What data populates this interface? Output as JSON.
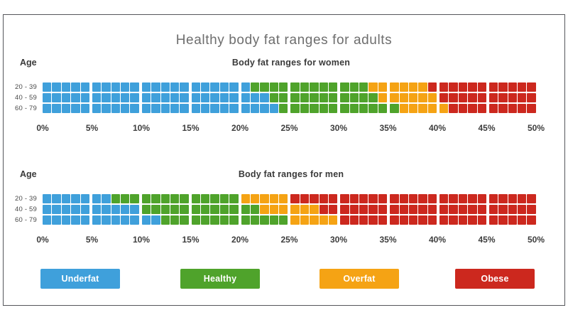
{
  "page": {
    "title": "Healthy body fat ranges for adults"
  },
  "legend": {
    "items": [
      {
        "label": "Underfat",
        "color": "#3FA0DB"
      },
      {
        "label": "Healthy",
        "color": "#4FA32B"
      },
      {
        "label": "Overfat",
        "color": "#F5A314"
      },
      {
        "label": "Obese",
        "color": "#CC281E"
      }
    ]
  },
  "chart_data": [
    {
      "type": "bar",
      "subtype": "horizontal-range-stacked",
      "title": "Body fat ranges for women",
      "corner_label": "Age",
      "categories": [
        "20 - 39",
        "40 - 59",
        "60 - 79"
      ],
      "unit": "%",
      "xlim": [
        0,
        50
      ],
      "segment_step": 1,
      "group_step": 5,
      "x_tick_labels": [
        "0%",
        "5%",
        "10%",
        "15%",
        "20%",
        "25%",
        "30%",
        "35%",
        "40%",
        "45%",
        "50%"
      ],
      "series": [
        {
          "name": "Underfat",
          "color": "#3FA0DB",
          "ranges": [
            [
              0,
              21
            ],
            [
              0,
              23
            ],
            [
              0,
              24
            ]
          ]
        },
        {
          "name": "Healthy",
          "color": "#4FA32B",
          "ranges": [
            [
              21,
              33
            ],
            [
              23,
              34
            ],
            [
              24,
              36
            ]
          ]
        },
        {
          "name": "Overfat",
          "color": "#F5A314",
          "ranges": [
            [
              33,
              39
            ],
            [
              34,
              40
            ],
            [
              36,
              41
            ]
          ]
        },
        {
          "name": "Obese",
          "color": "#CC281E",
          "ranges": [
            [
              39,
              50
            ],
            [
              40,
              50
            ],
            [
              41,
              50
            ]
          ]
        }
      ]
    },
    {
      "type": "bar",
      "subtype": "horizontal-range-stacked",
      "title": "Body fat ranges for men",
      "corner_label": "Age",
      "categories": [
        "20 - 39",
        "40 - 59",
        "60 - 79"
      ],
      "unit": "%",
      "xlim": [
        0,
        50
      ],
      "segment_step": 1,
      "group_step": 5,
      "x_tick_labels": [
        "0%",
        "5%",
        "10%",
        "15%",
        "20%",
        "25%",
        "30%",
        "35%",
        "40%",
        "45%",
        "50%"
      ],
      "series": [
        {
          "name": "Underfat",
          "color": "#3FA0DB",
          "ranges": [
            [
              0,
              7
            ],
            [
              0,
              10
            ],
            [
              0,
              12
            ]
          ]
        },
        {
          "name": "Healthy",
          "color": "#4FA32B",
          "ranges": [
            [
              7,
              20
            ],
            [
              10,
              22
            ],
            [
              12,
              25
            ]
          ]
        },
        {
          "name": "Overfat",
          "color": "#F5A314",
          "ranges": [
            [
              20,
              25
            ],
            [
              22,
              28
            ],
            [
              25,
              30
            ]
          ]
        },
        {
          "name": "Obese",
          "color": "#CC281E",
          "ranges": [
            [
              25,
              50
            ],
            [
              28,
              50
            ],
            [
              30,
              50
            ]
          ]
        }
      ]
    }
  ]
}
